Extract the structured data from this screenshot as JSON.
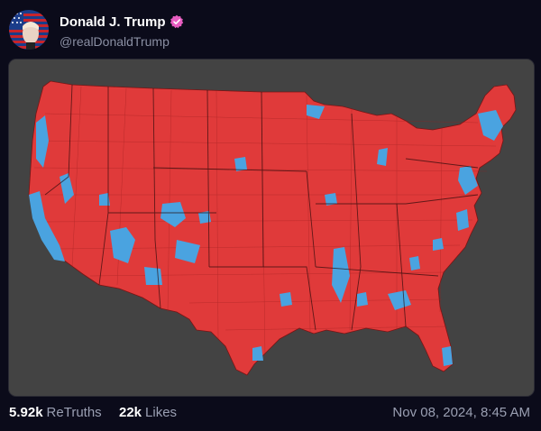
{
  "post": {
    "author_name": "Donald J. Trump",
    "handle": "@realDonaldTrump",
    "timestamp": "Nov 08, 2024, 8:45 AM"
  },
  "stats": {
    "retruths_count": "5.92k",
    "retruths_label": "ReTruths",
    "likes_count": "22k",
    "likes_label": "Likes"
  },
  "media": {
    "description_colors": {
      "background": "#434343",
      "republican": "#e03a3a",
      "democrat": "#4aa3e0"
    }
  },
  "icons": {
    "verified": "verified-badge-icon",
    "avatar": "profile-avatar"
  }
}
